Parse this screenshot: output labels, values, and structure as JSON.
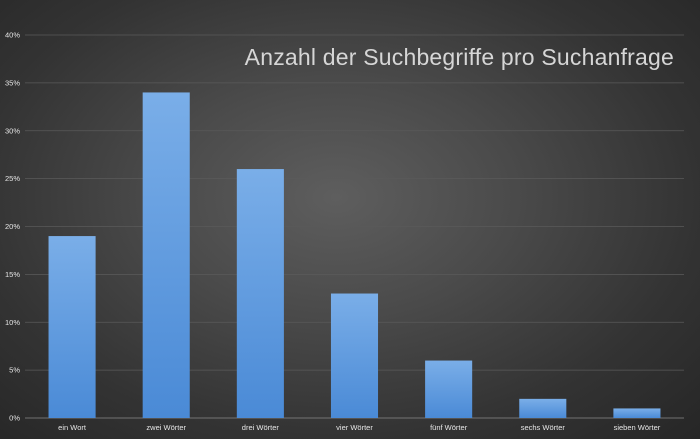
{
  "chart_data": {
    "type": "bar",
    "title": "Anzahl der Suchbegriffe pro Suchanfrage",
    "xlabel": "",
    "ylabel": "",
    "categories": [
      "ein Wort",
      "zwei Wörter",
      "drei Wörter",
      "vier Wörter",
      "fünf Wörter",
      "sechs Wörter",
      "sieben Wörter"
    ],
    "values": [
      19,
      34,
      26,
      13,
      6,
      2,
      1
    ],
    "value_unit": "%",
    "ylim": [
      0,
      40
    ],
    "yticks": [
      "0%",
      "5%",
      "10%",
      "15%",
      "20%",
      "25%",
      "30%",
      "35%",
      "40%"
    ],
    "ytick_values": [
      0,
      5,
      10,
      15,
      20,
      25,
      30,
      35,
      40
    ],
    "grid": true,
    "legend": "none",
    "colors": {
      "bar_top": "#7aaee8",
      "bar_bottom": "#4a8ad6",
      "grid": "#5a5a5a",
      "text": "#e6e6e6",
      "title": "#d6d6d6"
    }
  }
}
